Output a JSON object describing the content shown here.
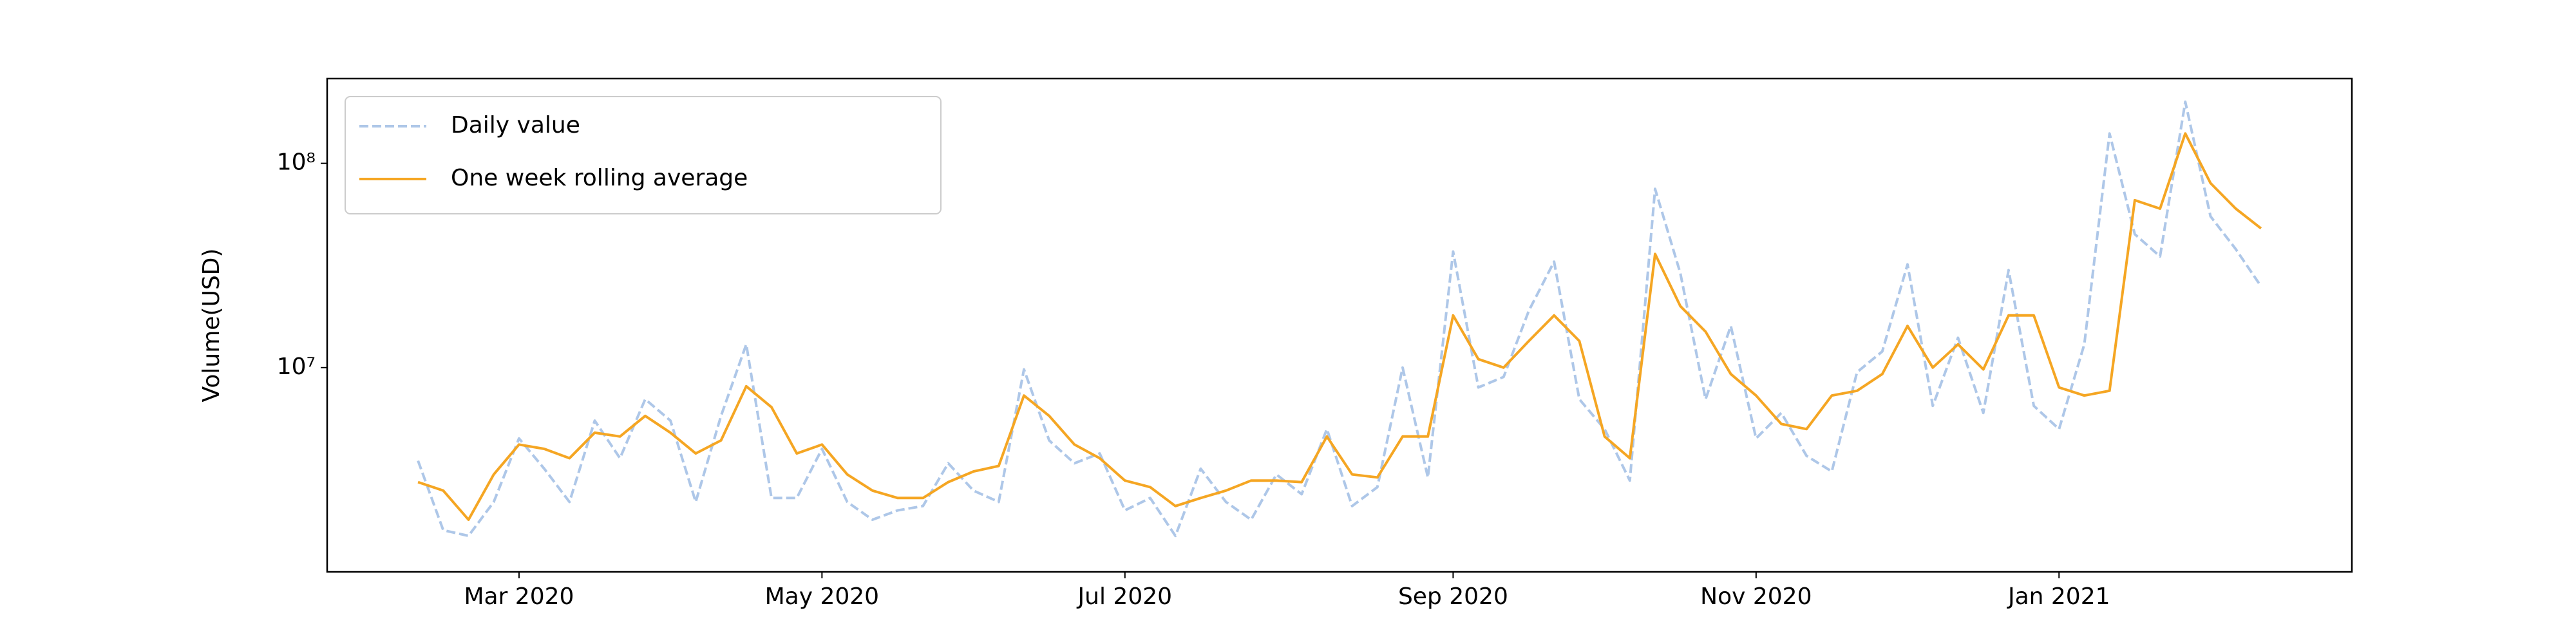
{
  "chart_data": {
    "type": "line",
    "y_label": "Volume(USD)",
    "categories": [
      null,
      null,
      null,
      null,
      "Mar 2020",
      null,
      null,
      null,
      null,
      null,
      null,
      null,
      null,
      null,
      null,
      null,
      "May 2020",
      null,
      null,
      null,
      null,
      null,
      null,
      null,
      null,
      null,
      null,
      null,
      "Jul 2020",
      null,
      null,
      null,
      null,
      null,
      null,
      null,
      null,
      null,
      null,
      null,
      null,
      "Sep 2020",
      null,
      null,
      null,
      null,
      null,
      null,
      null,
      null,
      null,
      null,
      null,
      "Nov 2020",
      null,
      null,
      null,
      null,
      null,
      null,
      null,
      null,
      null,
      null,
      null,
      "Jan 2021",
      null,
      null,
      null,
      null,
      null,
      null,
      null,
      null
    ],
    "series": [
      {
        "name": "Daily value",
        "color": "#aec7e8",
        "dashed": true,
        "values": [
          3500000,
          1600000,
          1500000,
          2200000,
          4500000,
          3200000,
          2200000,
          5500000,
          3600000,
          7000000,
          5500000,
          2200000,
          5800000,
          13000000,
          2300000,
          2300000,
          4000000,
          2200000,
          1800000,
          2000000,
          2100000,
          3400000,
          2500000,
          2200000,
          9800000,
          4400000,
          3400000,
          3800000,
          2000000,
          2300000,
          1500000,
          3200000,
          2200000,
          1800000,
          3000000,
          2400000,
          5000000,
          2100000,
          2600000,
          10000000,
          2900000,
          37000000,
          8000000,
          9000000,
          19000000,
          33000000,
          7000000,
          5000000,
          2800000,
          75000000,
          29000000,
          7000000,
          16000000,
          4500000,
          6000000,
          3700000,
          3100000,
          9500000,
          12000000,
          32000000,
          6500000,
          14000000,
          6000000,
          30000000,
          6500000,
          5000000,
          13000000,
          140000000,
          45000000,
          35000000,
          200000000,
          55000000,
          38000000,
          25000000
        ]
      },
      {
        "name": "One week rolling average",
        "color": "#f5a623",
        "dashed": false,
        "values": [
          2750000,
          2500000,
          1800000,
          3000000,
          4200000,
          4000000,
          3600000,
          4800000,
          4600000,
          5800000,
          4800000,
          3800000,
          4400000,
          8100000,
          6400000,
          3800000,
          4200000,
          3000000,
          2500000,
          2300000,
          2300000,
          2750000,
          3100000,
          3300000,
          7300000,
          5800000,
          4200000,
          3600000,
          2800000,
          2600000,
          2100000,
          2300000,
          2500000,
          2800000,
          2800000,
          2750000,
          4600000,
          3000000,
          2900000,
          4600000,
          4600000,
          18000000,
          11000000,
          10000000,
          13500000,
          18000000,
          13500000,
          4600000,
          3600000,
          36000000,
          20000000,
          15000000,
          9300000,
          7300000,
          5300000,
          5000000,
          7300000,
          7700000,
          9300000,
          16000000,
          10000000,
          13000000,
          9800000,
          18000000,
          18000000,
          8000000,
          7300000,
          7700000,
          66000000,
          60000000,
          140000000,
          80000000,
          60000000,
          48000000
        ]
      }
    ],
    "ylim": [
      1000000,
      260000000
    ],
    "yticks": [
      {
        "value": 10000000,
        "label": "10⁷"
      },
      {
        "value": 100000000,
        "label": "10⁸"
      }
    ],
    "log_y": true,
    "legend": "upper left"
  }
}
